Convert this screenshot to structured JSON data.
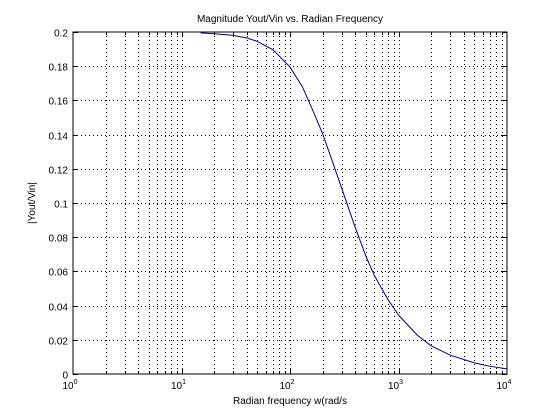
{
  "chart_data": {
    "type": "line",
    "title": "Magnitude Yout/Vin vs. Radian Frequency",
    "xlabel": "Radian frequency w(rad/s",
    "ylabel": "|Yout/Vin|",
    "x_scale": "log",
    "xlim": [
      1,
      10000
    ],
    "ylim": [
      0,
      0.2
    ],
    "grid": true,
    "x_ticks": [
      {
        "value": 1,
        "base": "10",
        "exp": "0"
      },
      {
        "value": 10,
        "base": "10",
        "exp": "1"
      },
      {
        "value": 100,
        "base": "10",
        "exp": "2"
      },
      {
        "value": 1000,
        "base": "10",
        "exp": "3"
      },
      {
        "value": 10000,
        "base": "10",
        "exp": "4"
      }
    ],
    "y_ticks": [
      "0",
      "0.02",
      "0.04",
      "0.06",
      "0.08",
      "0.1",
      "0.12",
      "0.14",
      "0.16",
      "0.18",
      "0.2"
    ],
    "series": [
      {
        "color": "#00008b",
        "x": [
          15,
          20,
          30,
          40,
          50,
          70,
          100,
          130,
          160,
          200,
          250,
          300,
          400,
          500,
          600,
          800,
          1000,
          1500,
          2000,
          3000,
          5000,
          7000,
          10000
        ],
        "y": [
          0.1995,
          0.199,
          0.198,
          0.1965,
          0.1945,
          0.1895,
          0.1795,
          0.168,
          0.155,
          0.1405,
          0.123,
          0.1085,
          0.0855,
          0.069,
          0.0575,
          0.0435,
          0.0345,
          0.0225,
          0.0165,
          0.011,
          0.0065,
          0.0045,
          0.003
        ]
      }
    ]
  }
}
